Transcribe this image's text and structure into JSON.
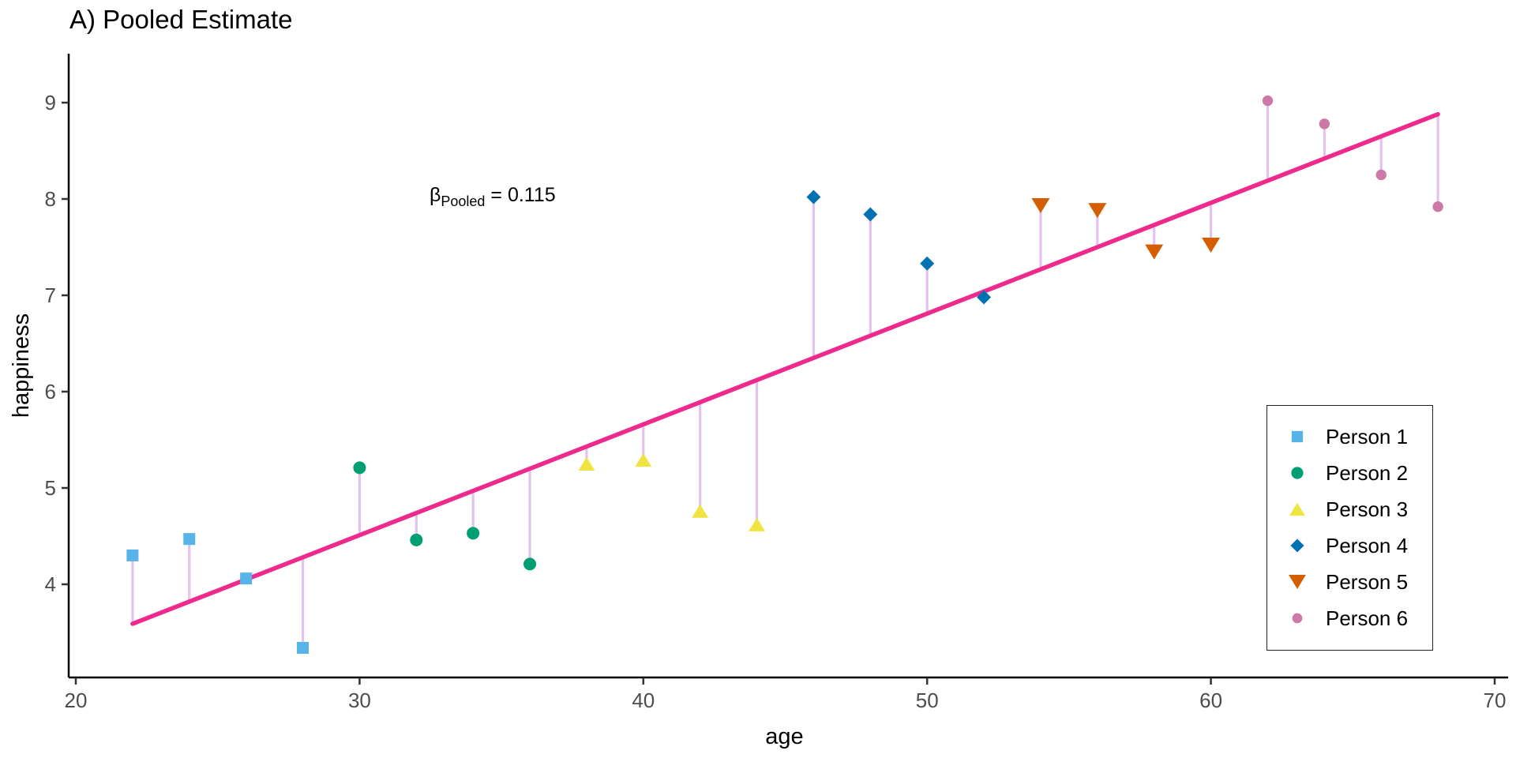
{
  "title": "A) Pooled Estimate",
  "annotation": {
    "symbol": "β",
    "subscript": "Pooled",
    "rest": " = 0.115"
  },
  "chart_data": {
    "type": "scatter",
    "title": "A) Pooled Estimate",
    "xlabel": "age",
    "ylabel": "happiness",
    "x_ticks": [
      20,
      30,
      40,
      50,
      60,
      70
    ],
    "y_ticks": [
      4,
      5,
      6,
      7,
      8,
      9
    ],
    "xlim": [
      19.7,
      70.5
    ],
    "ylim": [
      3.0,
      9.5
    ],
    "grid": false,
    "legend_position": "inside-right",
    "annotation_text": "β_Pooled = 0.115",
    "beta_pooled": 0.115,
    "regression_line": {
      "slope": 0.115,
      "x_start": 22,
      "y_start": 3.59,
      "x_end": 68,
      "y_end": 8.88,
      "color": "#EE2A8C"
    },
    "residual_color": "#E2C2EF",
    "series": [
      {
        "name": "Person 1",
        "marker": "square",
        "color": "#56B4E9",
        "points": [
          [
            22,
            4.3
          ],
          [
            24,
            4.47
          ],
          [
            26,
            4.06
          ],
          [
            28,
            3.34
          ]
        ]
      },
      {
        "name": "Person 2",
        "marker": "circle",
        "color": "#009E73",
        "points": [
          [
            30,
            5.21
          ],
          [
            32,
            4.46
          ],
          [
            34,
            4.53
          ],
          [
            36,
            4.21
          ]
        ]
      },
      {
        "name": "Person 3",
        "marker": "triangle-up",
        "color": "#F0E442",
        "points": [
          [
            38,
            5.25
          ],
          [
            40,
            5.29
          ],
          [
            42,
            4.76
          ],
          [
            44,
            4.62
          ]
        ]
      },
      {
        "name": "Person 4",
        "marker": "diamond",
        "color": "#0072B2",
        "points": [
          [
            46,
            8.02
          ],
          [
            48,
            7.84
          ],
          [
            50,
            7.33
          ],
          [
            52,
            6.98
          ]
        ]
      },
      {
        "name": "Person 5",
        "marker": "triangle-down",
        "color": "#D55E00",
        "points": [
          [
            54,
            7.93
          ],
          [
            56,
            7.88
          ],
          [
            58,
            7.45
          ],
          [
            60,
            7.52
          ]
        ]
      },
      {
        "name": "Person 6",
        "marker": "circle-small",
        "color": "#CC79A7",
        "points": [
          [
            62,
            9.02
          ],
          [
            64,
            8.78
          ],
          [
            66,
            8.25
          ],
          [
            68,
            7.92
          ]
        ]
      }
    ],
    "axis_style": {
      "axis_color": "#000000",
      "tick_label_color": "#4d4d4d"
    }
  }
}
